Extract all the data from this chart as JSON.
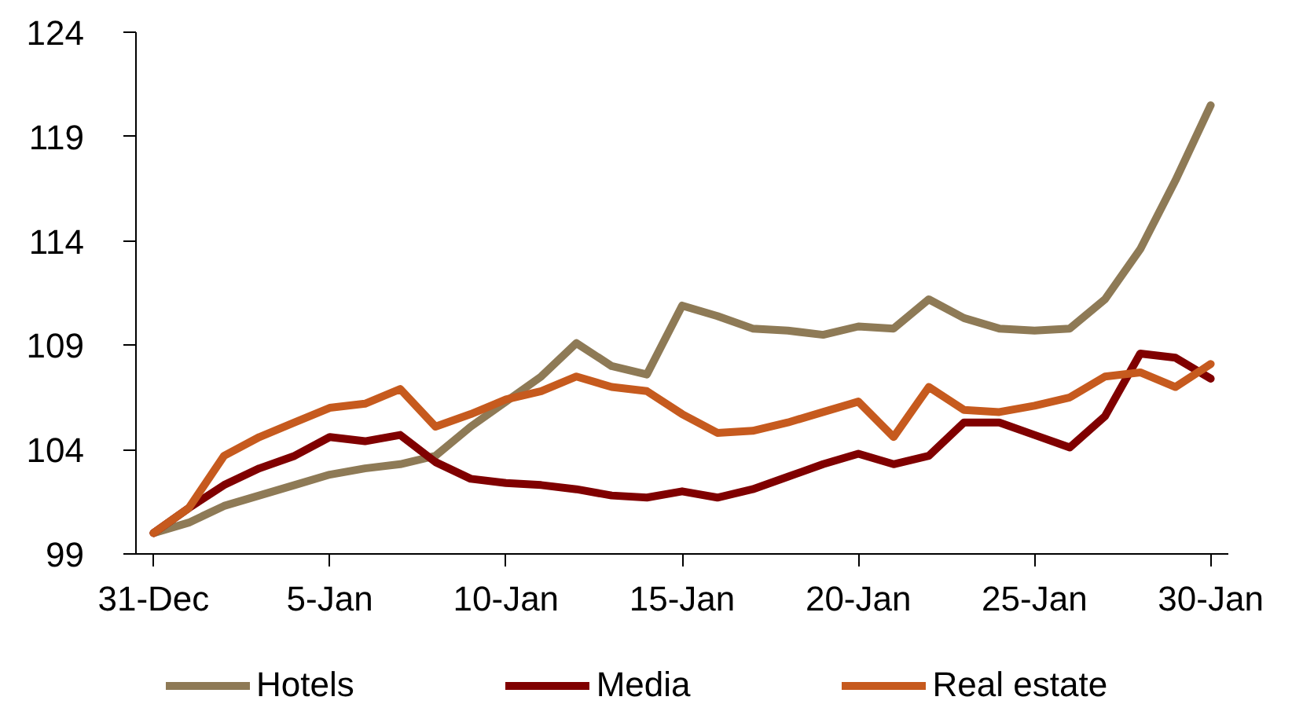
{
  "chart_data": {
    "type": "line",
    "categories": [
      "31-Dec",
      null,
      null,
      null,
      null,
      "5-Jan",
      null,
      null,
      null,
      null,
      "10-Jan",
      null,
      null,
      null,
      null,
      "15-Jan",
      null,
      null,
      null,
      null,
      "20-Jan",
      null,
      null,
      null,
      null,
      "25-Jan",
      null,
      null,
      null,
      null,
      "30-Jan"
    ],
    "ylim": [
      99,
      124
    ],
    "yticks": [
      99,
      104,
      109,
      114,
      119,
      124
    ],
    "grid": false,
    "legend": "bottom",
    "line_style": "solid",
    "series": [
      {
        "name": "Hotels",
        "color": "#8e7a56",
        "values": [
          100.0,
          100.5,
          101.3,
          101.8,
          102.3,
          102.8,
          103.1,
          103.3,
          103.7,
          105.1,
          106.3,
          107.5,
          109.1,
          108.0,
          107.6,
          110.9,
          110.4,
          109.8,
          109.7,
          109.5,
          109.9,
          109.8,
          111.2,
          110.3,
          109.8,
          109.7,
          109.8,
          111.2,
          113.6,
          116.9,
          120.5
        ]
      },
      {
        "name": "Media",
        "color": "#800000",
        "values": [
          100.0,
          101.2,
          102.3,
          103.1,
          103.7,
          104.6,
          104.4,
          104.7,
          103.4,
          102.6,
          102.4,
          102.3,
          102.1,
          101.8,
          101.7,
          102.0,
          101.7,
          102.1,
          102.7,
          103.3,
          103.8,
          103.3,
          103.7,
          105.3,
          105.3,
          104.7,
          104.1,
          105.6,
          108.6,
          108.4,
          107.4
        ]
      },
      {
        "name": "Real estate",
        "color": "#c65a1e",
        "values": [
          100.0,
          101.2,
          103.7,
          104.6,
          105.3,
          106.0,
          106.2,
          106.9,
          105.1,
          105.7,
          106.4,
          106.8,
          107.5,
          107.0,
          106.8,
          105.7,
          104.8,
          104.9,
          105.3,
          105.8,
          106.3,
          104.6,
          107.0,
          105.9,
          105.8,
          106.1,
          106.5,
          107.5,
          107.7,
          107.0,
          108.1
        ]
      }
    ]
  }
}
